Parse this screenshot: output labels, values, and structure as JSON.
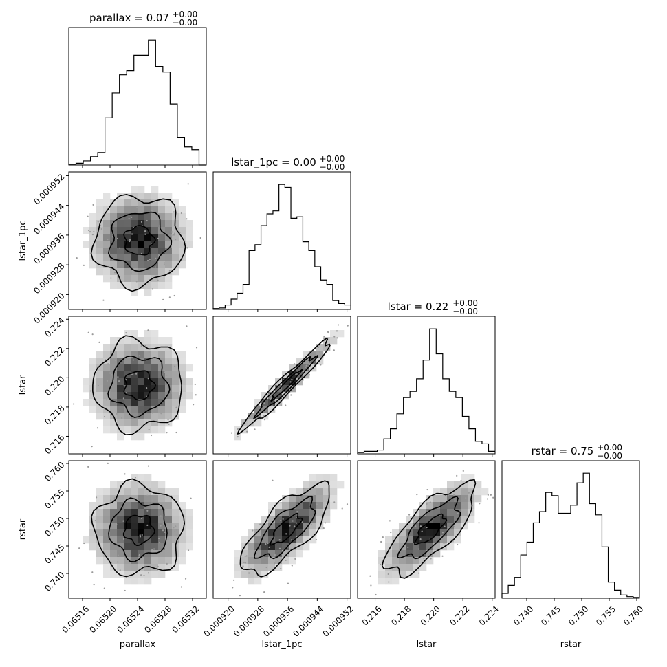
{
  "chart_data": {
    "type": "corner",
    "parameters": [
      {
        "name": "parallax",
        "title": "parallax = 0.07",
        "title_sup": "+0.00",
        "title_sub": "−0.00",
        "range": [
          0.06514,
          0.06534
        ],
        "ticks": [
          0.06516,
          0.0652,
          0.06524,
          0.06528,
          0.06532
        ],
        "tick_labels": [
          "0.06516",
          "0.06520",
          "0.06524",
          "0.06528",
          "0.06532"
        ],
        "mean": 0.06526,
        "sd": 2.5e-05,
        "hist": [
          0.6,
          1.3,
          3,
          6,
          9,
          34,
          52,
          65,
          68,
          79,
          79,
          90,
          71,
          67,
          44,
          20,
          13,
          11,
          0
        ],
        "axis_label": "parallax"
      },
      {
        "name": "lstar_1pc",
        "title": "lstar_1pc = 0.00",
        "title_sup": "+0.00",
        "title_sub": "−0.00",
        "range": [
          0.000916,
          0.000953
        ],
        "ticks": [
          0.00092,
          0.000928,
          0.000936,
          0.000944,
          0.000952
        ],
        "tick_labels": [
          "0.000920",
          "0.000928",
          "0.000936",
          "0.000944",
          "0.000952"
        ],
        "mean": 0.000935,
        "sd": 4.5e-06,
        "hist": [
          0.6,
          1,
          3,
          7,
          11,
          17,
          40,
          44,
          57,
          65,
          67,
          85,
          83,
          62,
          63,
          46,
          40,
          29,
          20,
          17,
          6,
          4,
          3
        ],
        "axis_label": "lstar_1pc"
      },
      {
        "name": "lstar",
        "title": "lstar = 0.22",
        "title_sup": "+0.00",
        "title_sub": "−0.00",
        "range": [
          0.2148,
          0.2242
        ],
        "ticks": [
          0.216,
          0.218,
          0.22,
          0.222,
          0.224
        ],
        "tick_labels": [
          "0.216",
          "0.218",
          "0.220",
          "0.222",
          "0.224"
        ],
        "mean": 0.2196,
        "sd": 0.00115,
        "hist": [
          1,
          2,
          2,
          3,
          12,
          20,
          32,
          45,
          50,
          60,
          75,
          100,
          80,
          60,
          50,
          45,
          30,
          20,
          10,
          8,
          2
        ],
        "axis_label": "lstar"
      },
      {
        "name": "rstar",
        "title": "rstar = 0.75",
        "title_sup": "+0.00",
        "title_sub": "−0.00",
        "range": [
          0.7355,
          0.7605
        ],
        "ticks": [
          0.74,
          0.745,
          0.75,
          0.755,
          0.76
        ],
        "tick_labels": [
          "0.740",
          "0.745",
          "0.750",
          "0.755",
          "0.760"
        ],
        "mean": 0.7475,
        "sd": 0.0035,
        "hist": [
          3,
          8,
          13,
          27,
          35,
          47,
          54,
          66,
          64,
          53,
          53,
          58,
          72,
          78,
          59,
          52,
          32,
          10,
          5,
          2,
          1,
          0.5
        ],
        "axis_label": "rstar"
      }
    ],
    "correlations": {
      "1-0": 0.0,
      "2-0": 0.0,
      "2-1": 0.97,
      "3-0": 0.0,
      "3-1": 0.75,
      "3-2": 0.75
    },
    "density_colormap": "greys",
    "contour_levels": 3,
    "grid": false
  }
}
